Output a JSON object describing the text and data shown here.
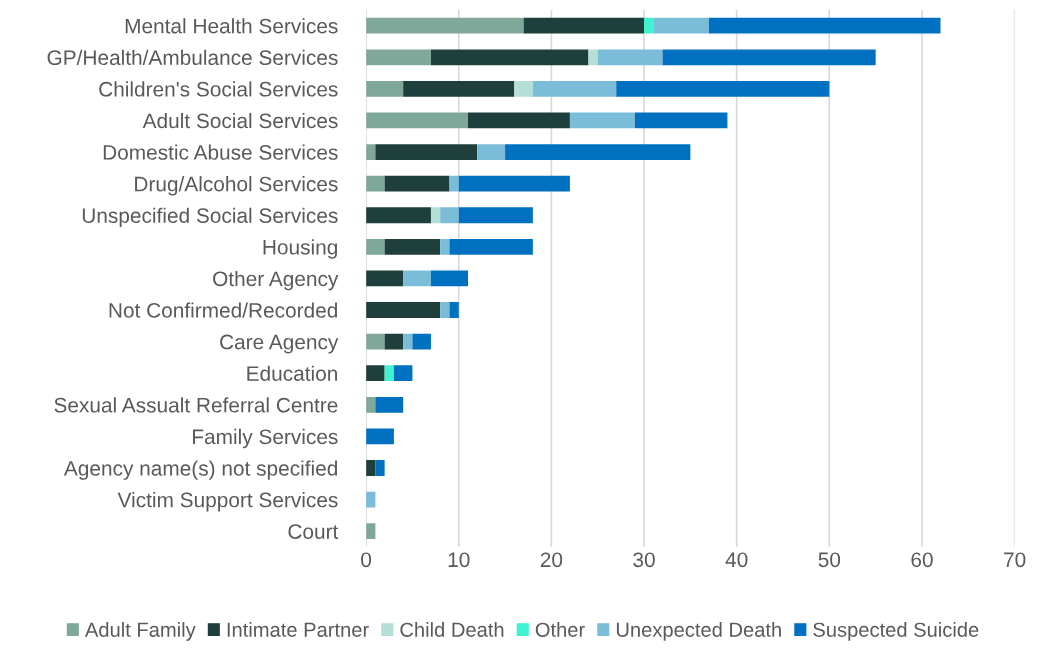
{
  "chart_data": {
    "type": "bar",
    "orientation": "horizontal",
    "stacked": true,
    "categories": [
      "Mental Health Services",
      "GP/Health/Ambulance Services",
      "Children's Social Services",
      "Adult Social Services",
      "Domestic Abuse Services",
      "Drug/Alcohol Services",
      "Unspecified Social Services",
      "Housing",
      "Other Agency",
      "Not Confirmed/Recorded",
      "Care Agency",
      "Education",
      "Sexual Assualt Referral Centre",
      "Family Services",
      "Agency name(s) not specified",
      "Victim Support Services",
      "Court"
    ],
    "series": [
      {
        "name": "Adult Family",
        "color": "#7fa89a",
        "values": [
          17,
          7,
          4,
          11,
          1,
          2,
          0,
          2,
          0,
          0,
          2,
          0,
          1,
          0,
          0,
          0,
          1
        ]
      },
      {
        "name": "Intimate Partner",
        "color": "#1e3f3b",
        "values": [
          13,
          17,
          12,
          11,
          11,
          7,
          7,
          6,
          4,
          8,
          2,
          2,
          0,
          0,
          1,
          0,
          0
        ]
      },
      {
        "name": "Child Death",
        "color": "#b5ded6",
        "values": [
          0,
          1,
          2,
          0,
          0,
          0,
          1,
          0,
          0,
          0,
          0,
          0,
          0,
          0,
          0,
          0,
          0
        ]
      },
      {
        "name": "Other",
        "color": "#3ff3d0",
        "values": [
          1,
          0,
          0,
          0,
          0,
          0,
          0,
          0,
          0,
          0,
          0,
          1,
          0,
          0,
          0,
          0,
          0
        ]
      },
      {
        "name": "Unexpected Death",
        "color": "#7bbcd8",
        "values": [
          6,
          7,
          9,
          7,
          3,
          1,
          2,
          1,
          3,
          1,
          1,
          0,
          0,
          0,
          0,
          1,
          0
        ]
      },
      {
        "name": "Suspected Suicide",
        "color": "#0070c0",
        "values": [
          25,
          23,
          23,
          10,
          20,
          12,
          8,
          9,
          4,
          1,
          2,
          2,
          3,
          3,
          1,
          0,
          0
        ]
      }
    ],
    "xlim": [
      0,
      70
    ],
    "xticks": [
      0,
      10,
      20,
      30,
      40,
      50,
      60,
      70
    ],
    "grid": "x",
    "legend": "bottom"
  }
}
